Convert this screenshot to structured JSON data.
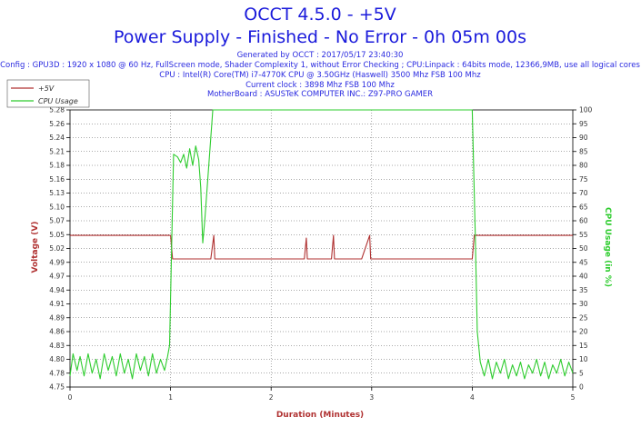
{
  "chart_data": {
    "type": "line",
    "title": "OCCT 4.5.0 - +5V",
    "subtitle": "Power Supply - Finished - No Error - 0h 05m 00s",
    "info_lines": [
      "Generated by OCCT : 2017/05/17 23:40:30",
      "Config : GPU3D : 1920 x 1080 @ 60 Hz, FullScreen mode, Shader Complexity 1, without Error Checking ; CPU:Linpack : 64bits mode, 12366,9MB, use all logical cores",
      "CPU : Intel(R) Core(TM) i7-4770K CPU @ 3.50GHz (Haswell) 3500 Mhz FSB 100 Mhz",
      "Current clock : 3898 Mhz FSB 100 Mhz",
      "MotherBoard : ASUSTeK COMPUTER INC.: Z97-PRO GAMER"
    ],
    "xlabel": "Duration (Minutes)",
    "ylabel_left": "Voltage (V)",
    "ylabel_right": "CPU Usage (in %)",
    "xlim": [
      0,
      5
    ],
    "ylim_left": [
      4.75,
      5.28
    ],
    "ylim_right": [
      0,
      100
    ],
    "x_ticks": [
      "0",
      "1",
      "2",
      "3",
      "4",
      "5"
    ],
    "y_left_ticks": [
      "4.75",
      "4.78",
      "4.80",
      "4.83",
      "4.86",
      "4.89",
      "4.91",
      "4.94",
      "4.97",
      "4.99",
      "5.02",
      "5.05",
      "5.07",
      "5.10",
      "5.13",
      "5.16",
      "5.18",
      "5.21",
      "5.24",
      "5.26",
      "5.28"
    ],
    "y_right_ticks": [
      "0",
      "5",
      "10",
      "15",
      "20",
      "25",
      "30",
      "35",
      "40",
      "45",
      "50",
      "55",
      "60",
      "65",
      "70",
      "75",
      "80",
      "85",
      "90",
      "95",
      "100"
    ],
    "grid": true,
    "legend_position": "top-left",
    "series": [
      {
        "name": "+5V",
        "axis": "left",
        "color": "#b03232",
        "points": [
          [
            0,
            5.04
          ],
          [
            1.0,
            5.04
          ],
          [
            1.02,
            4.995
          ],
          [
            1.4,
            4.995
          ],
          [
            1.43,
            5.04
          ],
          [
            1.44,
            4.995
          ],
          [
            2.33,
            4.995
          ],
          [
            2.35,
            5.035
          ],
          [
            2.36,
            4.995
          ],
          [
            2.6,
            4.995
          ],
          [
            2.62,
            5.04
          ],
          [
            2.63,
            4.995
          ],
          [
            2.9,
            4.995
          ],
          [
            2.98,
            5.04
          ],
          [
            2.99,
            4.995
          ],
          [
            4.0,
            4.995
          ],
          [
            4.02,
            5.04
          ],
          [
            5.0,
            5.04
          ]
        ]
      },
      {
        "name": "CPU Usage",
        "axis": "right",
        "color": "#2ecc2e",
        "points": [
          [
            0,
            4
          ],
          [
            0.03,
            12
          ],
          [
            0.07,
            6
          ],
          [
            0.1,
            11
          ],
          [
            0.14,
            4
          ],
          [
            0.18,
            12
          ],
          [
            0.22,
            5
          ],
          [
            0.26,
            10
          ],
          [
            0.3,
            3
          ],
          [
            0.34,
            12
          ],
          [
            0.38,
            6
          ],
          [
            0.42,
            11
          ],
          [
            0.46,
            4
          ],
          [
            0.5,
            12
          ],
          [
            0.54,
            5
          ],
          [
            0.58,
            10
          ],
          [
            0.62,
            3
          ],
          [
            0.66,
            12
          ],
          [
            0.7,
            6
          ],
          [
            0.74,
            11
          ],
          [
            0.78,
            4
          ],
          [
            0.82,
            12
          ],
          [
            0.86,
            5
          ],
          [
            0.9,
            10
          ],
          [
            0.94,
            6
          ],
          [
            0.97,
            11
          ],
          [
            0.99,
            15
          ],
          [
            1.03,
            84
          ],
          [
            1.07,
            83
          ],
          [
            1.1,
            81
          ],
          [
            1.13,
            84
          ],
          [
            1.16,
            79
          ],
          [
            1.19,
            86
          ],
          [
            1.22,
            80
          ],
          [
            1.25,
            87
          ],
          [
            1.28,
            82
          ],
          [
            1.3,
            72
          ],
          [
            1.32,
            52
          ],
          [
            1.34,
            60
          ],
          [
            1.38,
            80
          ],
          [
            1.42,
            100
          ],
          [
            4.0,
            100
          ],
          [
            4.03,
            55
          ],
          [
            4.05,
            20
          ],
          [
            4.08,
            9
          ],
          [
            4.12,
            4
          ],
          [
            4.16,
            10
          ],
          [
            4.2,
            3
          ],
          [
            4.24,
            9
          ],
          [
            4.28,
            5
          ],
          [
            4.32,
            10
          ],
          [
            4.36,
            3
          ],
          [
            4.4,
            8
          ],
          [
            4.44,
            4
          ],
          [
            4.48,
            9
          ],
          [
            4.52,
            3
          ],
          [
            4.56,
            8
          ],
          [
            4.6,
            5
          ],
          [
            4.64,
            10
          ],
          [
            4.68,
            4
          ],
          [
            4.72,
            9
          ],
          [
            4.76,
            3
          ],
          [
            4.8,
            8
          ],
          [
            4.84,
            5
          ],
          [
            4.88,
            10
          ],
          [
            4.92,
            4
          ],
          [
            4.96,
            9
          ],
          [
            5.0,
            5
          ]
        ]
      }
    ]
  }
}
